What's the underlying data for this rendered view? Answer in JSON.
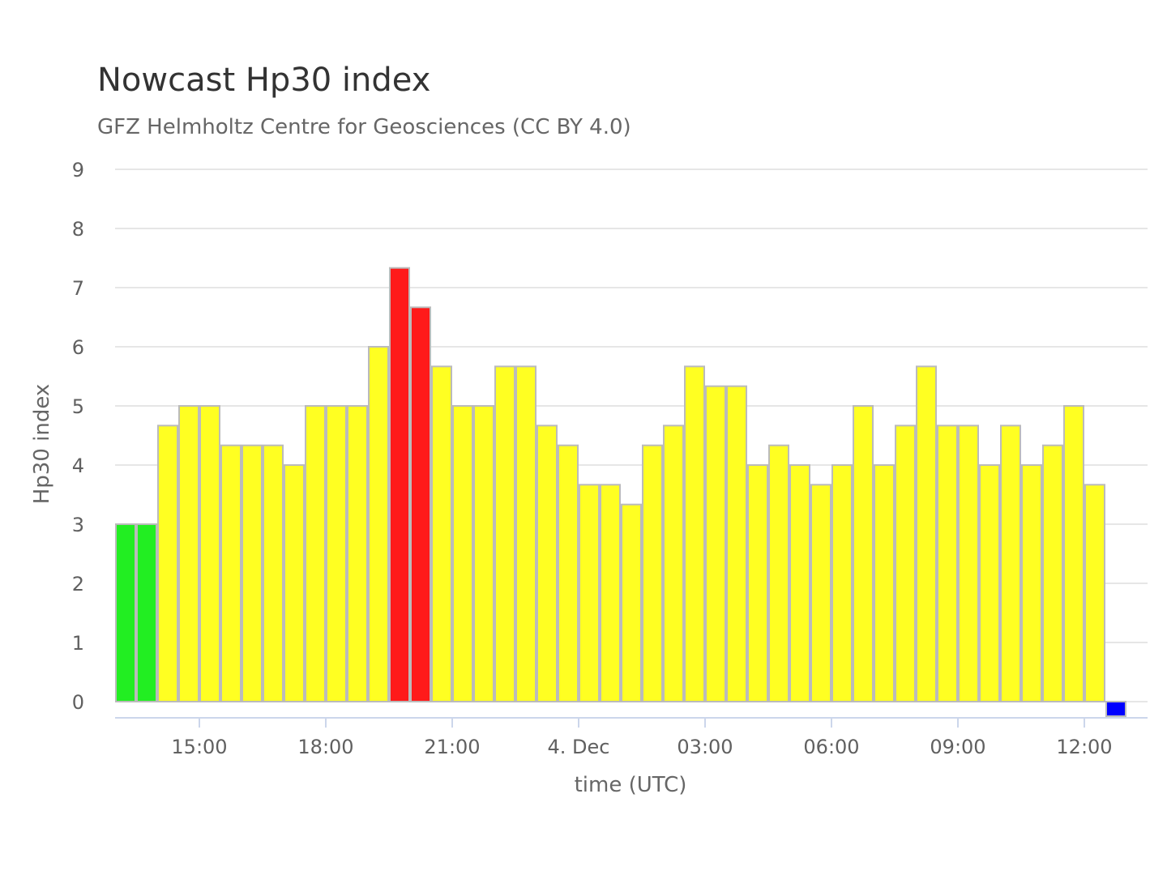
{
  "chart_data": {
    "type": "bar",
    "title": "Nowcast Hp30 index",
    "subtitle": "GFZ Helmholtz Centre for Geosciences (CC BY 4.0)",
    "xlabel": "time (UTC)",
    "ylabel": "Hp30 index",
    "ylim": [
      0,
      9
    ],
    "yticks": [
      "0",
      "1",
      "2",
      "3",
      "4",
      "5",
      "6",
      "7",
      "8",
      "9"
    ],
    "grid": true,
    "legend": "none",
    "x_axis": {
      "type": "datetime",
      "range": [
        "2024-12-03 13:00",
        "2024-12-04 13:30"
      ],
      "ticks": [
        {
          "time": "2024-12-03 15:00",
          "label": "15:00"
        },
        {
          "time": "2024-12-03 18:00",
          "label": "18:00"
        },
        {
          "time": "2024-12-03 21:00",
          "label": "21:00"
        },
        {
          "time": "2024-12-04 00:00",
          "label": "4. Dec"
        },
        {
          "time": "2024-12-04 03:00",
          "label": "03:00"
        },
        {
          "time": "2024-12-04 06:00",
          "label": "06:00"
        },
        {
          "time": "2024-12-04 09:00",
          "label": "09:00"
        },
        {
          "time": "2024-12-04 12:00",
          "label": "12:00"
        }
      ]
    },
    "colors": {
      "green": "#22ee22",
      "yellow": "#ffff22",
      "red": "#ff1a1a",
      "blue": "#0000ff",
      "grid": "#e6e6e6",
      "axis": "#ccd6eb",
      "bar_border": "#bbbbbb"
    },
    "series": [
      {
        "times": [
          "2024-12-03 13:15",
          "2024-12-03 13:45",
          "2024-12-03 14:15",
          "2024-12-03 14:45",
          "2024-12-03 15:15",
          "2024-12-03 15:45",
          "2024-12-03 16:15",
          "2024-12-03 16:45",
          "2024-12-03 17:15",
          "2024-12-03 17:45",
          "2024-12-03 18:15",
          "2024-12-03 18:45",
          "2024-12-03 19:15",
          "2024-12-03 19:45",
          "2024-12-03 20:15",
          "2024-12-03 20:45",
          "2024-12-03 21:15",
          "2024-12-03 21:45",
          "2024-12-03 22:15",
          "2024-12-03 22:45",
          "2024-12-03 23:15",
          "2024-12-03 23:45",
          "2024-12-04 00:15",
          "2024-12-04 00:45",
          "2024-12-04 01:15",
          "2024-12-04 01:45",
          "2024-12-04 02:15",
          "2024-12-04 02:45",
          "2024-12-04 03:15",
          "2024-12-04 03:45",
          "2024-12-04 04:15",
          "2024-12-04 04:45",
          "2024-12-04 05:15",
          "2024-12-04 05:45",
          "2024-12-04 06:15",
          "2024-12-04 06:45",
          "2024-12-04 07:15",
          "2024-12-04 07:45",
          "2024-12-04 08:15",
          "2024-12-04 08:45",
          "2024-12-04 09:15",
          "2024-12-04 09:45",
          "2024-12-04 10:15",
          "2024-12-04 10:45",
          "2024-12-04 11:15",
          "2024-12-04 11:45",
          "2024-12-04 12:15",
          "2024-12-04 12:45"
        ],
        "values": [
          3,
          3,
          4.667,
          5,
          5,
          4.333,
          4.333,
          4.333,
          4,
          5,
          5,
          5,
          6,
          7.333,
          6.667,
          5.667,
          5,
          5,
          5.667,
          5.667,
          4.667,
          4.333,
          3.667,
          3.667,
          3.333,
          4.333,
          4.667,
          5.667,
          5.333,
          5.333,
          4,
          4.333,
          4,
          3.667,
          4,
          5,
          4,
          4.667,
          5.667,
          4.667,
          4.667,
          4,
          4.667,
          4,
          4.333,
          5,
          3.667,
          0
        ],
        "colors": [
          "green",
          "green",
          "yellow",
          "yellow",
          "yellow",
          "yellow",
          "yellow",
          "yellow",
          "yellow",
          "yellow",
          "yellow",
          "yellow",
          "yellow",
          "red",
          "red",
          "yellow",
          "yellow",
          "yellow",
          "yellow",
          "yellow",
          "yellow",
          "yellow",
          "yellow",
          "yellow",
          "yellow",
          "yellow",
          "yellow",
          "yellow",
          "yellow",
          "yellow",
          "yellow",
          "yellow",
          "yellow",
          "yellow",
          "yellow",
          "yellow",
          "yellow",
          "yellow",
          "yellow",
          "yellow",
          "yellow",
          "yellow",
          "yellow",
          "yellow",
          "yellow",
          "yellow",
          "yellow",
          "blue"
        ]
      }
    ]
  }
}
